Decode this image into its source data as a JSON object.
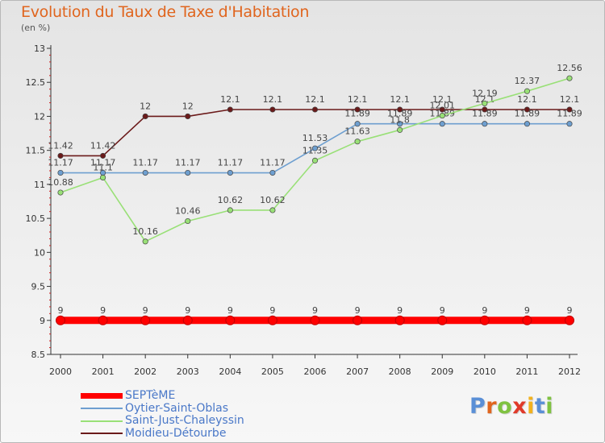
{
  "title": "Evolution du Taux de Taxe d'Habitation",
  "subtitle": "(en %)",
  "logo": {
    "letters": [
      "P",
      "r",
      "o",
      "x",
      "i",
      "t",
      "i"
    ],
    "colors": [
      "#5a8fd6",
      "#e0651e",
      "#7fc241",
      "#e03a2a",
      "#f2b21e",
      "#5a8fd6",
      "#7fc241"
    ]
  },
  "chart_data": {
    "type": "line",
    "title": "Evolution du Taux de Taxe d'Habitation",
    "ylabel": "(en %)",
    "xlabel": "",
    "ylim": [
      8.5,
      13
    ],
    "yticks": [
      "8.5",
      "9",
      "9.5",
      "10",
      "10.5",
      "11",
      "11.5",
      "12",
      "12.5",
      "13"
    ],
    "categories": [
      "2000",
      "2001",
      "2002",
      "2003",
      "2004",
      "2005",
      "2006",
      "2007",
      "2008",
      "2009",
      "2010",
      "2011",
      "2012"
    ],
    "series": [
      {
        "name": "Moidieu-Détourbe",
        "color": "#6b1a1a",
        "labels": [
          "11.42",
          "11.42",
          "12",
          "12",
          "12.1",
          "12.1",
          "12.1",
          "12.1",
          "12.1",
          "12.1",
          "12.1",
          "12.1",
          "12.1"
        ],
        "values": [
          11.42,
          11.42,
          12,
          12,
          12.1,
          12.1,
          12.1,
          12.1,
          12.1,
          12.1,
          12.1,
          12.1,
          12.1
        ]
      },
      {
        "name": "Oytier-Saint-Oblas",
        "color": "#6e9fd0",
        "labels": [
          "11.17",
          "11.17",
          "11.17",
          "11.17",
          "11.17",
          "11.17",
          "11.53",
          "11.89",
          "11.89",
          "11.89",
          "11.89",
          "11.89",
          "11.89"
        ],
        "values": [
          11.17,
          11.17,
          11.17,
          11.17,
          11.17,
          11.17,
          11.53,
          11.89,
          11.89,
          11.89,
          11.89,
          11.89,
          11.89
        ]
      },
      {
        "name": "Saint-Just-Chaleyssin",
        "color": "#99e077",
        "labels": [
          "10.88",
          "11.1",
          "10.16",
          "10.46",
          "10.62",
          "10.62",
          "11.35",
          "11.63",
          "11.8",
          "12.01",
          "12.19",
          "12.37",
          "12.56"
        ],
        "values": [
          10.88,
          11.1,
          10.16,
          10.46,
          10.62,
          10.62,
          11.35,
          11.63,
          11.8,
          12.01,
          12.19,
          12.37,
          12.56
        ]
      },
      {
        "name": "SEPTèME",
        "color": "#ff0000",
        "labels": [
          "9",
          "9",
          "9",
          "9",
          "9",
          "9",
          "9",
          "9",
          "9",
          "9",
          "9",
          "9",
          "9"
        ],
        "values": [
          9,
          9,
          9,
          9,
          9,
          9,
          9,
          9,
          9,
          9,
          9,
          9,
          9
        ]
      }
    ],
    "legend": [
      {
        "name": "SEPTèME",
        "color": "#ff0000"
      },
      {
        "name": "Oytier-Saint-Oblas",
        "color": "#6e9fd0"
      },
      {
        "name": "Saint-Just-Chaleyssin",
        "color": "#99e077"
      },
      {
        "name": "Moidieu-Détourbe",
        "color": "#6b1a1a"
      }
    ],
    "legend_position": "bottom-left",
    "grid": false
  }
}
